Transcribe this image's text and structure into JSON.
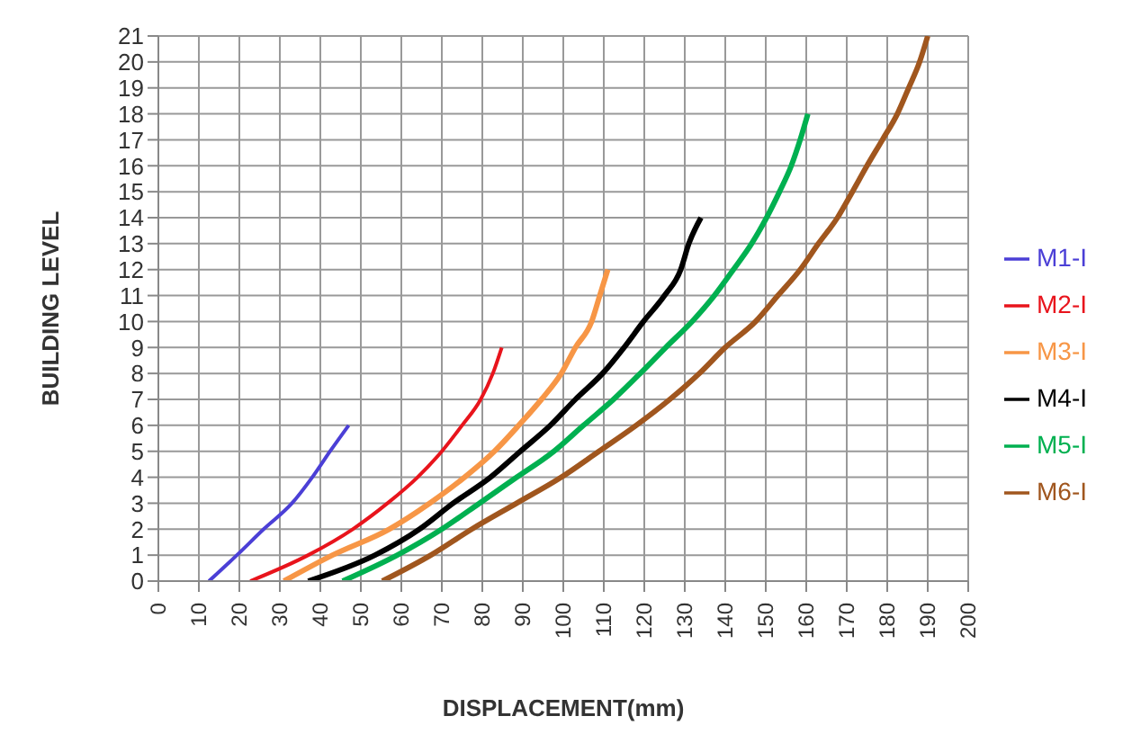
{
  "chart_data": {
    "type": "line",
    "xlabel": "DISPLACEMENT(mm)",
    "ylabel": "BUILDING LEVEL",
    "xlim": [
      0,
      200
    ],
    "xticks": [
      0,
      10,
      20,
      30,
      40,
      50,
      60,
      70,
      80,
      90,
      100,
      110,
      120,
      130,
      140,
      150,
      160,
      170,
      180,
      190,
      200
    ],
    "ylim": [
      0,
      21
    ],
    "yticks": [
      0,
      1,
      2,
      3,
      4,
      5,
      6,
      7,
      8,
      9,
      10,
      11,
      12,
      13,
      14,
      15,
      16,
      17,
      18,
      19,
      20,
      21
    ],
    "grid": true,
    "legend": "right",
    "marker": "none",
    "line_style": "solid",
    "series": [
      {
        "name": "M1-I",
        "color": "#4b3fd6",
        "x": [
          12.5,
          19.4,
          26,
          33,
          38,
          42.4,
          47
        ],
        "values": [
          0,
          1,
          2,
          3,
          4,
          5,
          6
        ]
      },
      {
        "name": "M2-I",
        "color": "#e8141c",
        "x": [
          22.7,
          37,
          48,
          56.6,
          64,
          70,
          75,
          79.6,
          82.6,
          84.8
        ],
        "values": [
          0,
          1,
          2,
          3,
          4,
          5,
          6,
          7,
          8,
          9
        ]
      },
      {
        "name": "M3-I",
        "color": "#f79646",
        "x": [
          31,
          43,
          57,
          67,
          75.6,
          83,
          89,
          94.6,
          99.5,
          103,
          107,
          109,
          111
        ],
        "values": [
          0,
          1,
          2,
          3,
          4,
          5,
          6,
          7,
          8,
          9,
          10,
          11,
          12
        ]
      },
      {
        "name": "M4-I",
        "color": "#000000",
        "x": [
          37,
          53.5,
          64.5,
          72.8,
          82,
          89.4,
          96.8,
          103,
          109.7,
          115,
          119.8,
          125,
          129,
          131,
          134
        ],
        "values": [
          0,
          1,
          2,
          3,
          4,
          5,
          6,
          7,
          8,
          9,
          10,
          11,
          12,
          13,
          14
        ]
      },
      {
        "name": "M5-I",
        "color": "#00b050",
        "x": [
          45.5,
          59,
          70,
          79.3,
          88.5,
          97.7,
          105,
          112.4,
          119,
          125.3,
          131.8,
          137.3,
          142,
          146.5,
          150.2,
          153.4,
          156.3,
          158.5,
          160.4
        ],
        "values": [
          0,
          1,
          2,
          3,
          4,
          5,
          6,
          7,
          8,
          9,
          10,
          11,
          12,
          13,
          14,
          15,
          16,
          17,
          18
        ]
      },
      {
        "name": "M6-I",
        "color": "#a0561e",
        "x": [
          55.3,
          67.3,
          77.4,
          88.5,
          99.5,
          108.8,
          118,
          126.3,
          133.6,
          140,
          147.5,
          153,
          158.5,
          163,
          167.7,
          171.4,
          175,
          178.8,
          182.5,
          185.3,
          188,
          190
        ],
        "values": [
          0,
          1,
          2,
          3,
          4,
          5,
          6,
          7,
          8,
          9,
          10,
          11,
          12,
          13,
          14,
          15,
          16,
          17,
          18,
          19,
          20,
          21
        ]
      }
    ]
  }
}
